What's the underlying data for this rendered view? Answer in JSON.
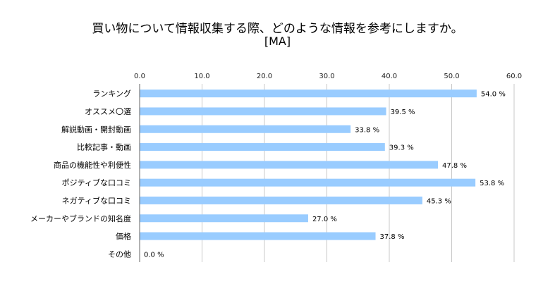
{
  "chart_data": {
    "type": "bar",
    "orientation": "horizontal",
    "title": "買い物について情報収集する際、どのような情報を参考にしますか。",
    "subtitle": "[MA]",
    "categories": [
      "ランキング",
      "オススメ〇選",
      "解説動画・開封動画",
      "比較記事・動画",
      "商品の機能性や利便性",
      "ポジティブな口コミ",
      "ネガティブな口コミ",
      "メーカーやブランドの知名度",
      "価格",
      "その他"
    ],
    "values": [
      54.0,
      39.5,
      33.8,
      39.3,
      47.8,
      53.8,
      45.3,
      27.0,
      37.8,
      0.0
    ],
    "value_labels": [
      "54.0 %",
      "39.5 %",
      "33.8 %",
      "39.3 %",
      "47.8 %",
      "53.8 %",
      "45.3 %",
      "27.0 %",
      "37.8 %",
      "0.0 %"
    ],
    "xticks": [
      "0.0",
      "10.0",
      "20.0",
      "30.0",
      "40.0",
      "50.0",
      "60.0"
    ],
    "xlim": [
      0,
      60
    ],
    "grid": true,
    "bar_color": "#99ccff",
    "grid_color": "#c8c8c8"
  }
}
